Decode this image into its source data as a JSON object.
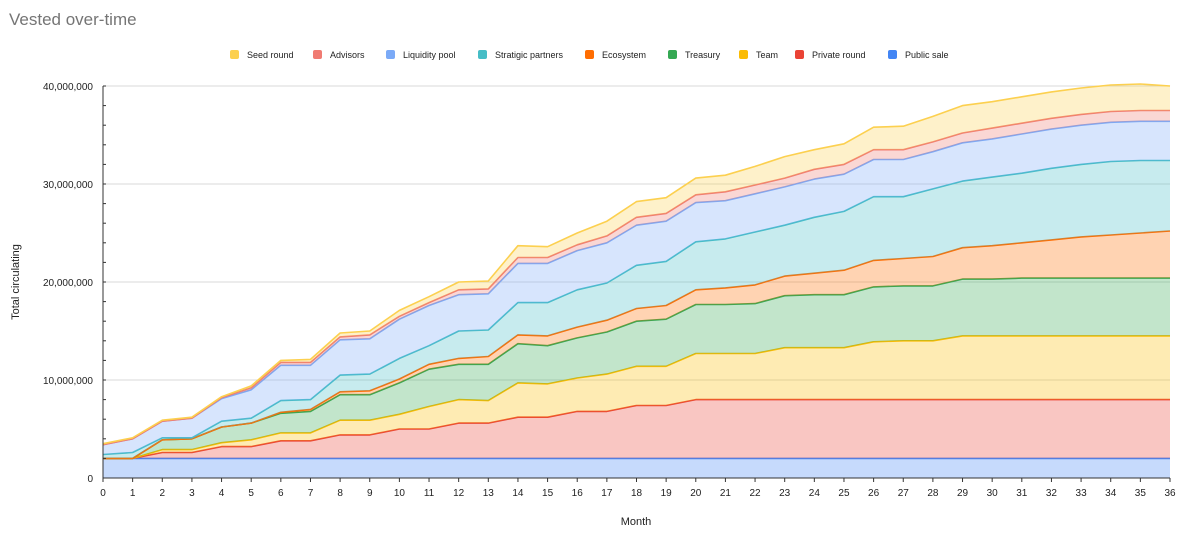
{
  "chart_data": {
    "type": "area",
    "stacked": true,
    "title": "Vested over-time",
    "xlabel": "Month",
    "ylabel": "Total circulating",
    "xlim": [
      0,
      36
    ],
    "ylim": [
      0,
      40000000
    ],
    "x_ticks": [
      "0",
      "1",
      "2",
      "3",
      "4",
      "5",
      "6",
      "7",
      "8",
      "9",
      "10",
      "11",
      "12",
      "13",
      "14",
      "15",
      "16",
      "17",
      "18",
      "19",
      "20",
      "21",
      "22",
      "23",
      "24",
      "25",
      "26",
      "27",
      "28",
      "29",
      "30",
      "31",
      "32",
      "33",
      "34",
      "35",
      "36"
    ],
    "y_ticks": [
      {
        "value": 0,
        "label": "0"
      },
      {
        "value": 10000000,
        "label": "10,000,000"
      },
      {
        "value": 20000000,
        "label": "20,000,000"
      },
      {
        "value": 30000000,
        "label": "30,000,000"
      },
      {
        "value": 40000000,
        "label": "40,000,000"
      }
    ],
    "legend_position": "top",
    "legend_order": [
      "Seed round",
      "Advisors",
      "Liquidity pool",
      "Stratigic partners",
      "Ecosystem",
      "Treasury",
      "Team",
      "Private round",
      "Public sale"
    ],
    "series": [
      {
        "name": "Public sale",
        "color": "#4285f4",
        "values": [
          2000000,
          2000000,
          2000000,
          2000000,
          2000000,
          2000000,
          2000000,
          2000000,
          2000000,
          2000000,
          2000000,
          2000000,
          2000000,
          2000000,
          2000000,
          2000000,
          2000000,
          2000000,
          2000000,
          2000000,
          2000000,
          2000000,
          2000000,
          2000000,
          2000000,
          2000000,
          2000000,
          2000000,
          2000000,
          2000000,
          2000000,
          2000000,
          2000000,
          2000000,
          2000000,
          2000000,
          2000000
        ]
      },
      {
        "name": "Private round",
        "color": "#ea4335",
        "values": [
          0,
          0,
          600000,
          600000,
          1200000,
          1200000,
          1800000,
          1800000,
          2400000,
          2400000,
          3000000,
          3000000,
          3600000,
          3600000,
          4200000,
          4200000,
          4800000,
          4800000,
          5400000,
          5400000,
          6000000,
          6000000,
          6000000,
          6000000,
          6000000,
          6000000,
          6000000,
          6000000,
          6000000,
          6000000,
          6000000,
          6000000,
          6000000,
          6000000,
          6000000,
          6000000,
          6000000
        ]
      },
      {
        "name": "Team",
        "color": "#fbbc04",
        "values": [
          0,
          0,
          300000,
          300000,
          400000,
          700000,
          800000,
          800000,
          1500000,
          1500000,
          1500000,
          2300000,
          2400000,
          2300000,
          3500000,
          3400000,
          3400000,
          3800000,
          4000000,
          4000000,
          4700000,
          4700000,
          4700000,
          5300000,
          5300000,
          5300000,
          5900000,
          6000000,
          6000000,
          6500000,
          6500000,
          6500000,
          6500000,
          6500000,
          6500000,
          6500000,
          6500000
        ]
      },
      {
        "name": "Treasury",
        "color": "#34a853",
        "values": [
          0,
          0,
          1000000,
          1100000,
          1600000,
          1700000,
          2000000,
          2200000,
          2600000,
          2600000,
          3200000,
          3800000,
          3600000,
          3700000,
          4000000,
          3900000,
          4100000,
          4300000,
          4600000,
          4800000,
          5000000,
          5000000,
          5100000,
          5300000,
          5400000,
          5400000,
          5600000,
          5600000,
          5600000,
          5800000,
          5800000,
          5900000,
          5900000,
          5900000,
          5900000,
          5900000,
          5900000
        ]
      },
      {
        "name": "Ecosystem",
        "color": "#ff6d01",
        "values": [
          0,
          0,
          0,
          0,
          0,
          0,
          100000,
          200000,
          300000,
          400000,
          400000,
          500000,
          600000,
          800000,
          900000,
          1000000,
          1100000,
          1200000,
          1300000,
          1400000,
          1500000,
          1700000,
          1900000,
          2000000,
          2200000,
          2500000,
          2700000,
          2800000,
          3000000,
          3200000,
          3400000,
          3600000,
          3900000,
          4200000,
          4400000,
          4600000,
          4800000
        ]
      },
      {
        "name": "Stratigic partners",
        "color": "#46bdc6",
        "values": [
          400000,
          600000,
          200000,
          100000,
          600000,
          500000,
          1200000,
          1000000,
          1700000,
          1700000,
          2100000,
          1900000,
          2800000,
          2700000,
          3300000,
          3400000,
          3800000,
          3800000,
          4400000,
          4500000,
          4900000,
          5000000,
          5400000,
          5200000,
          5700000,
          6000000,
          6500000,
          6300000,
          6900000,
          6800000,
          7000000,
          7100000,
          7300000,
          7400000,
          7500000,
          7400000,
          7200000
        ]
      },
      {
        "name": "Liquidity pool",
        "color": "#7baaf7",
        "values": [
          1000000,
          1400000,
          1700000,
          2000000,
          2300000,
          2900000,
          3600000,
          3500000,
          3600000,
          3600000,
          4000000,
          4100000,
          3700000,
          3700000,
          4000000,
          4000000,
          4000000,
          4100000,
          4100000,
          4100000,
          4000000,
          3900000,
          3900000,
          3900000,
          3900000,
          3800000,
          3800000,
          3800000,
          3800000,
          3900000,
          3900000,
          4000000,
          4000000,
          4000000,
          4000000,
          4000000,
          4000000
        ]
      },
      {
        "name": "Advisors",
        "color": "#f07b72",
        "values": [
          0,
          0,
          0,
          0,
          100000,
          200000,
          300000,
          300000,
          300000,
          400000,
          300000,
          300000,
          500000,
          500000,
          600000,
          600000,
          600000,
          700000,
          800000,
          800000,
          800000,
          900000,
          900000,
          900000,
          1000000,
          1000000,
          1000000,
          1000000,
          1000000,
          1000000,
          1100000,
          1100000,
          1100000,
          1100000,
          1100000,
          1100000,
          1100000
        ]
      },
      {
        "name": "Seed round",
        "color": "#fcd04f",
        "values": [
          100000,
          100000,
          100000,
          100000,
          100000,
          200000,
          200000,
          300000,
          400000,
          400000,
          600000,
          600000,
          800000,
          800000,
          1200000,
          1100000,
          1200000,
          1500000,
          1600000,
          1600000,
          1700000,
          1700000,
          1900000,
          2200000,
          2000000,
          2100000,
          2300000,
          2400000,
          2600000,
          2800000,
          2700000,
          2700000,
          2700000,
          2700000,
          2700000,
          2700000,
          2500000
        ]
      }
    ]
  }
}
